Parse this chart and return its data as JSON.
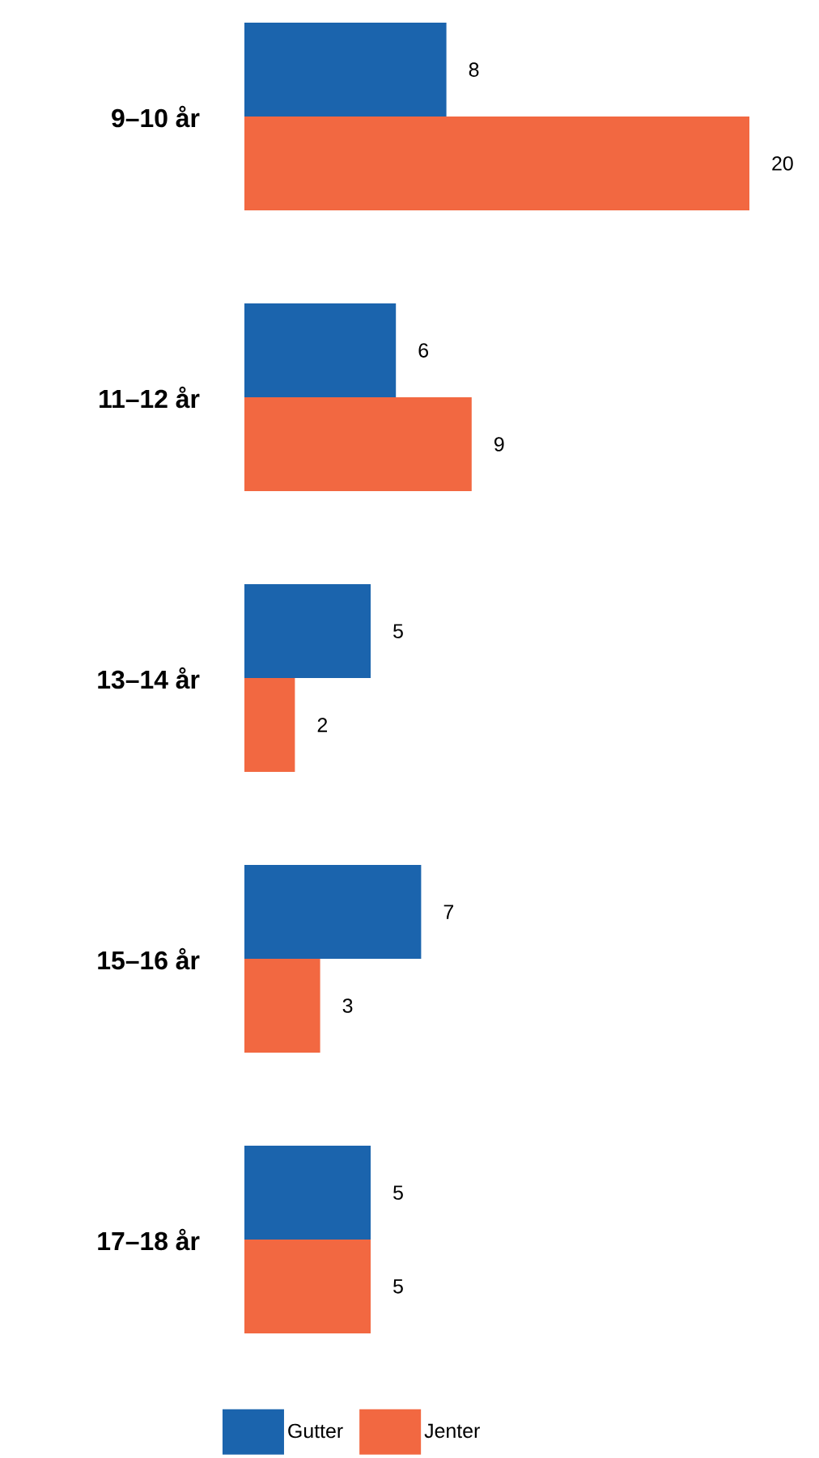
{
  "chart_data": {
    "type": "bar",
    "orientation": "horizontal",
    "categories": [
      "9–10 år",
      "11–12 år",
      "13–14 år",
      "15–16 år",
      "17–18 år"
    ],
    "series": [
      {
        "name": "Gutter",
        "color": "#1b64ad",
        "values": [
          8,
          6,
          5,
          7,
          5
        ]
      },
      {
        "name": "Jenter",
        "color": "#f26841",
        "values": [
          20,
          9,
          2,
          3,
          5
        ]
      }
    ],
    "xlim": [
      0,
      20
    ],
    "tick_labels": "y",
    "data_labels": true,
    "legend": "bottom"
  }
}
